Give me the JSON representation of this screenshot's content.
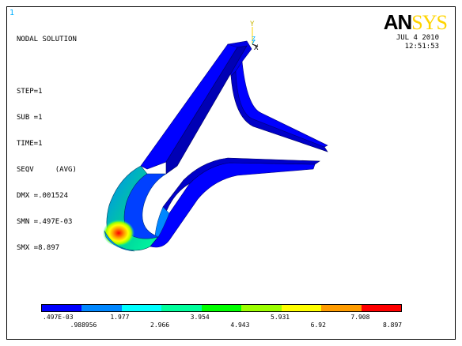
{
  "window": {
    "index": "1"
  },
  "header": {
    "lines": [
      "NODAL SOLUTION",
      "STEP=1",
      "SUB =1",
      "TIME=1",
      "SEQV     (AVG)",
      "DMX =.001524",
      "SMN =.497E-03",
      "SMX =8.897"
    ],
    "date": "JUL  4 2010",
    "time": "12:51:53"
  },
  "logo": {
    "an": "AN",
    "sys": "SYS"
  },
  "triad": {
    "y": "Y",
    "z": "Z",
    "x": "X"
  },
  "legend": {
    "colors": [
      "#0000ff",
      "#0087ff",
      "#00ffff",
      "#00ff9c",
      "#00ff00",
      "#9cff00",
      "#ffff00",
      "#ff9c00",
      "#ff0000"
    ],
    "labels_top": [
      ".497E-03",
      "1.977",
      "3.954",
      "5.931",
      "7.908"
    ],
    "labels_bottom": [
      ".988956",
      "2.966",
      "4.943",
      "6.92",
      "8.897"
    ]
  }
}
